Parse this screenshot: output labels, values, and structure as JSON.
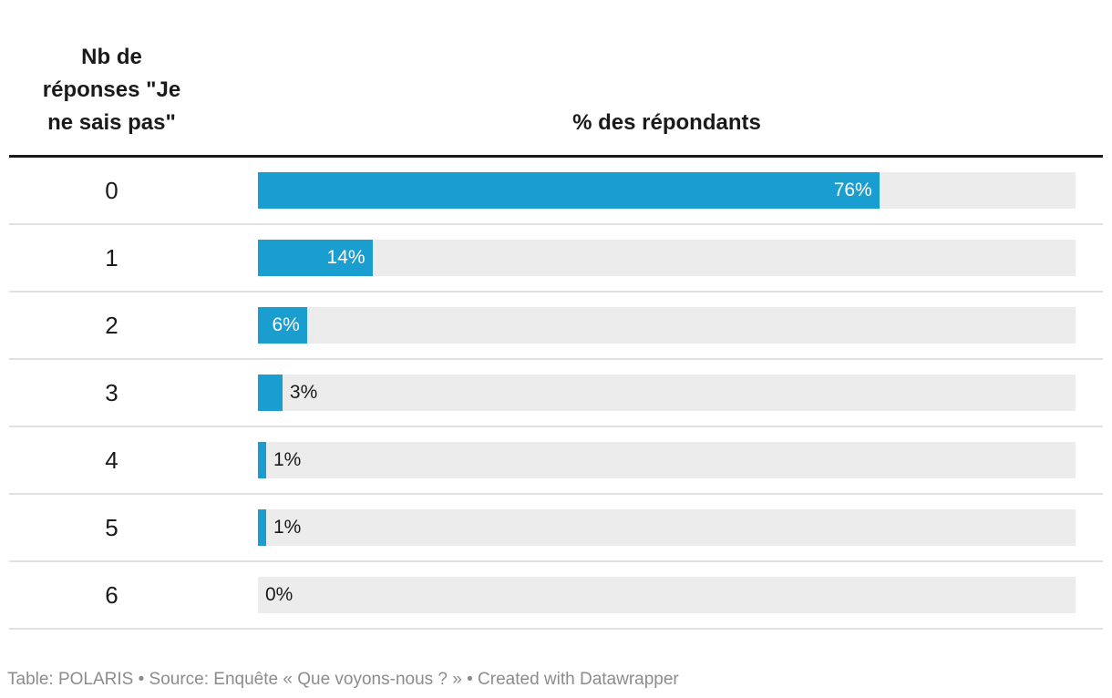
{
  "header": {
    "col1_label": "Nb de\nréponses \"Je\nne sais pas\"",
    "col2_label": "% des répondants"
  },
  "rows": [
    {
      "label": "0",
      "value": 76,
      "value_label": "76%",
      "label_inside": true
    },
    {
      "label": "1",
      "value": 14,
      "value_label": "14%",
      "label_inside": true
    },
    {
      "label": "2",
      "value": 6,
      "value_label": "6%",
      "label_inside": true
    },
    {
      "label": "3",
      "value": 3,
      "value_label": "3%",
      "label_inside": false
    },
    {
      "label": "4",
      "value": 1,
      "value_label": "1%",
      "label_inside": false
    },
    {
      "label": "5",
      "value": 1,
      "value_label": "1%",
      "label_inside": false
    },
    {
      "label": "6",
      "value": 0,
      "value_label": "0%",
      "label_inside": false
    }
  ],
  "footer": {
    "text": "Table: POLARIS • Source: Enquête « Que voyons-nous ? » • Created with Datawrapper"
  },
  "colors": {
    "bar": "#1A9ECF",
    "track": "#ECECEC",
    "divider": "#E0E0E0",
    "header_rule": "#1A1A1A",
    "text": "#1A1A1A",
    "bar_label_inside": "#FFFFFF",
    "footer_text": "#8C8C8C"
  },
  "chart_data": {
    "type": "bar",
    "orientation": "horizontal",
    "categories": [
      "0",
      "1",
      "2",
      "3",
      "4",
      "5",
      "6"
    ],
    "values": [
      76,
      14,
      6,
      3,
      1,
      1,
      0
    ],
    "value_labels": [
      "76%",
      "14%",
      "6%",
      "3%",
      "1%",
      "1%",
      "0%"
    ],
    "title": "",
    "xlabel": "% des répondants",
    "ylabel": "Nb de réponses \"Je ne sais pas\"",
    "xlim": [
      0,
      100
    ],
    "grid": false,
    "legend": "none",
    "source": "Table: POLARIS • Source: Enquête « Que voyons-nous ? » • Created with Datawrapper"
  }
}
